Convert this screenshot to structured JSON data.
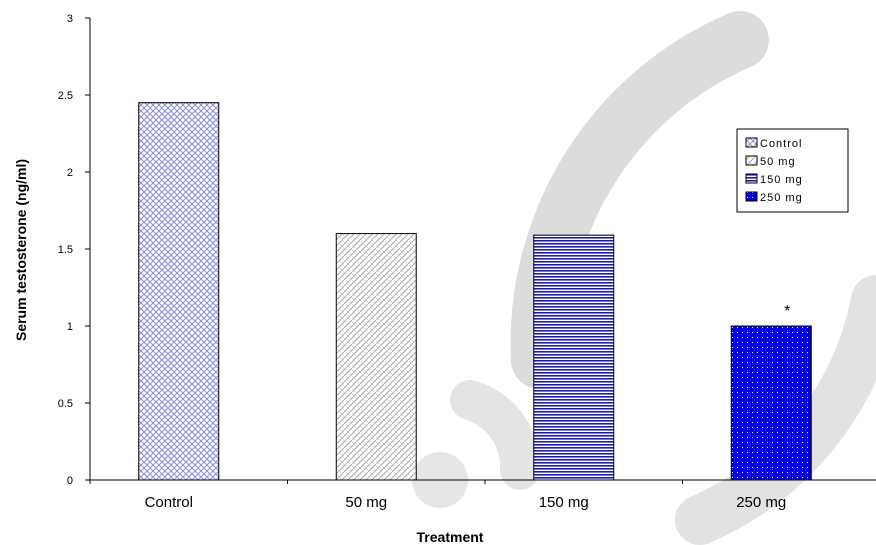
{
  "chart_data": {
    "type": "bar",
    "categories": [
      "Control",
      "50 mg",
      "150 mg",
      "250 mg"
    ],
    "values": [
      2.45,
      1.6,
      1.59,
      1.0
    ],
    "xlabel": "Treatment",
    "ylabel": "Serum testosterone (ng/ml)",
    "ylim": [
      0,
      3
    ],
    "yticks": [
      "0",
      "0.5",
      "1",
      "1.5",
      "2",
      "2.5",
      "3"
    ],
    "ytick_values": [
      0,
      0.5,
      1,
      1.5,
      2,
      2.5,
      3
    ],
    "legend": {
      "placement": "right",
      "entries": [
        "Control",
        "50 mg",
        "150 mg",
        "250 mg"
      ]
    },
    "annotations": [
      {
        "category": "250 mg",
        "text": "*"
      }
    ],
    "grid": false,
    "colors": {
      "control": "#8c8cd9",
      "mg50": "#9a9a9a",
      "mg150": "#1c1cb0",
      "mg250": "#0000e0",
      "watermark": "#dcdcdc"
    }
  }
}
